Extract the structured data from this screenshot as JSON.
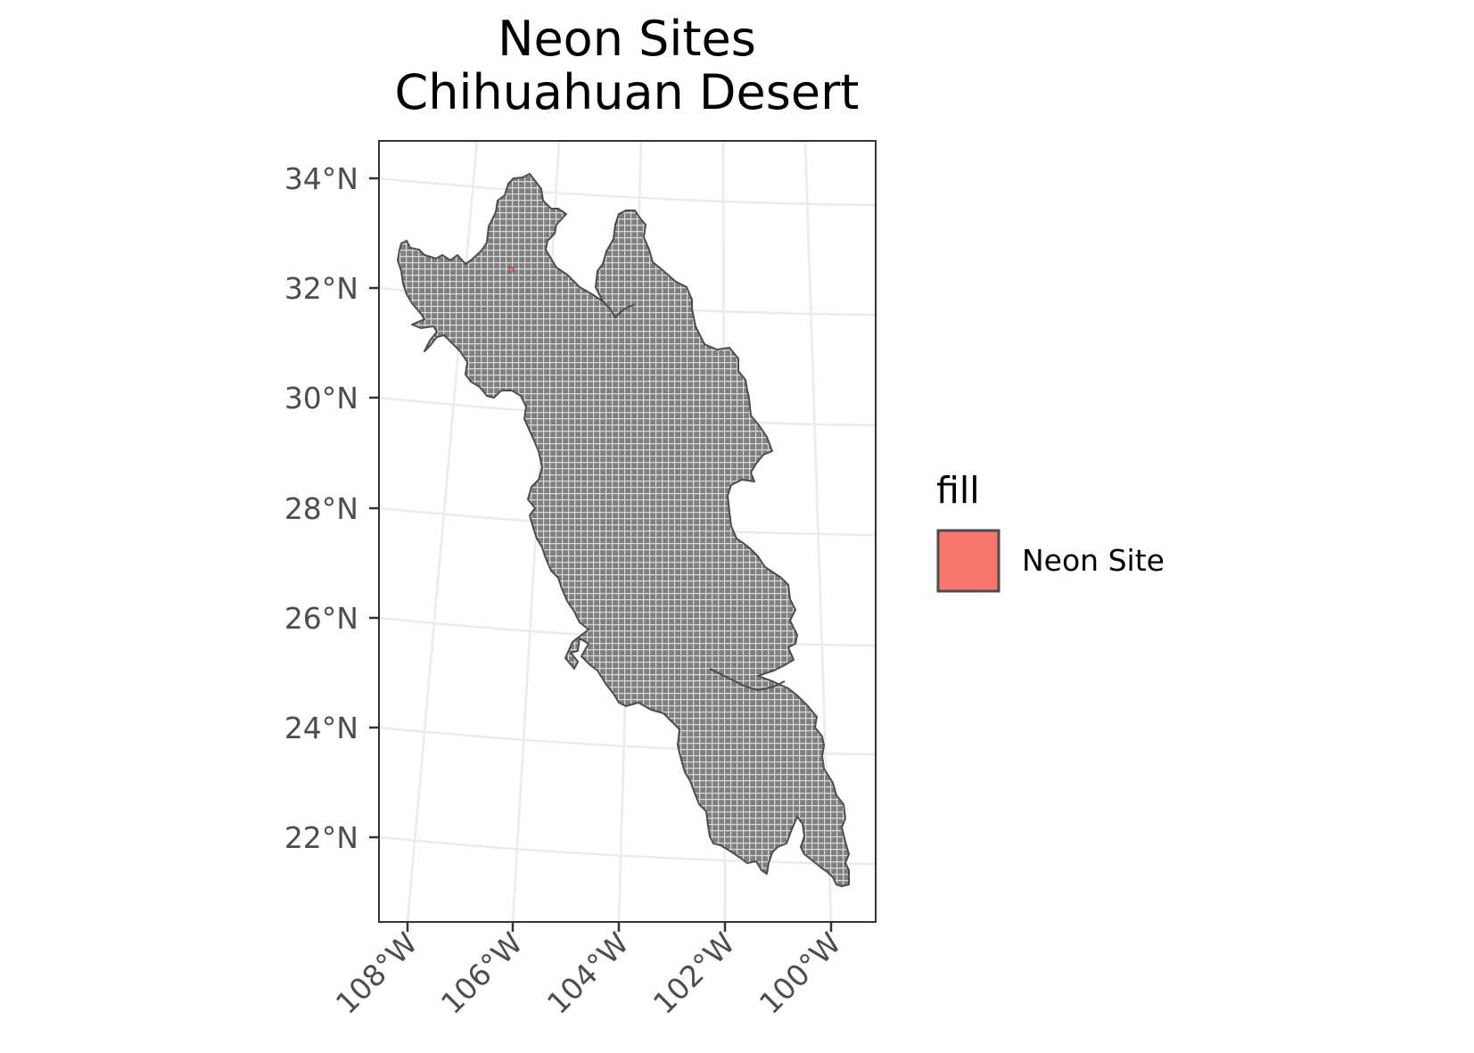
{
  "title": {
    "line1": "Neon Sites",
    "line2": "Chihuahuan Desert"
  },
  "axes": {
    "y_ticks": [
      "34°N",
      "32°N",
      "30°N",
      "28°N",
      "26°N",
      "24°N",
      "22°N"
    ],
    "x_ticks": [
      "108°W",
      "106°W",
      "104°W",
      "102°W",
      "100°W"
    ]
  },
  "legend": {
    "title": "fill",
    "items": [
      {
        "label": "Neon Site",
        "color": "#f8766d"
      }
    ]
  },
  "colors": {
    "region_fill": "#7f7f7f",
    "grid_line": "#d9d9d9",
    "region_outline": "#4d4d4d",
    "neon_site": "#f8766d",
    "graticule": "#ebebeb",
    "panel_border": "#333333"
  },
  "map": {
    "projection": "equal-area conic",
    "region": "Chihuahuan Desert",
    "grid": "fine square grid cells",
    "neon_site_lat": 32.6,
    "neon_site_lon": -106.8
  }
}
